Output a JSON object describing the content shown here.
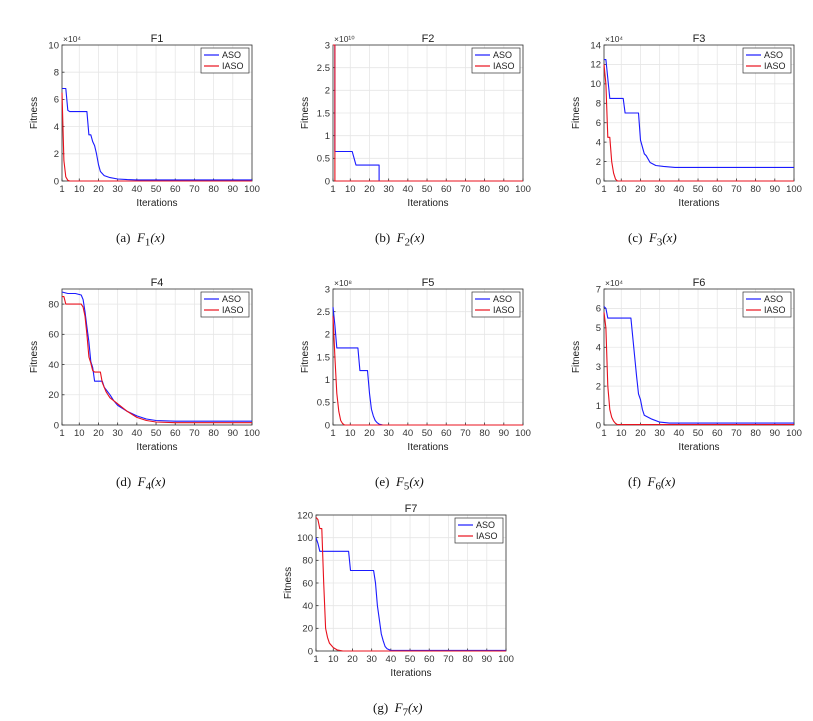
{
  "colors": {
    "aso": "#1a1aff",
    "iaso": "#e8101c",
    "grid": "#e6e6e6",
    "axis": "#333333"
  },
  "chart_data": [
    {
      "type": "line",
      "title": "F1",
      "xlabel": "Iterations",
      "ylabel": "Fitness",
      "xlim": [
        1,
        100
      ],
      "ylim": [
        0,
        10
      ],
      "y_exponent": "×10⁴",
      "xticks": [
        1,
        10,
        20,
        30,
        40,
        50,
        60,
        70,
        80,
        90,
        100
      ],
      "xtick_labels": [
        "1",
        "10",
        "20",
        "30",
        "40",
        "50",
        "60",
        "70",
        "80",
        "90",
        "100"
      ],
      "yticks": [
        0,
        2,
        4,
        6,
        8,
        10
      ],
      "ytick_labels": [
        "0",
        "2",
        "4",
        "6",
        "8",
        "10"
      ],
      "legend": [
        "ASO",
        "IASO"
      ],
      "caption_prefix": "(a)",
      "caption_func": "F",
      "caption_sub": "1",
      "caption_arg": "(x)",
      "series": [
        {
          "name": "ASO",
          "x": [
            1,
            3,
            4,
            5,
            14,
            15,
            16,
            17,
            18,
            19,
            20,
            21,
            23,
            26,
            30,
            35,
            40,
            100
          ],
          "values": [
            6.8,
            6.8,
            5.2,
            5.1,
            5.1,
            3.4,
            3.4,
            2.9,
            2.6,
            2.0,
            1.2,
            0.7,
            0.4,
            0.25,
            0.15,
            0.1,
            0.08,
            0.08
          ]
        },
        {
          "name": "IASO",
          "x": [
            1,
            2,
            3,
            4,
            5,
            100
          ],
          "values": [
            6.5,
            1.5,
            0.3,
            0.05,
            0,
            0
          ]
        }
      ]
    },
    {
      "type": "line",
      "title": "F2",
      "xlabel": "Iterations",
      "ylabel": "Fitness",
      "xlim": [
        1,
        100
      ],
      "ylim": [
        0,
        3
      ],
      "y_exponent": "×10¹⁰",
      "xticks": [
        1,
        10,
        20,
        30,
        40,
        50,
        60,
        70,
        80,
        90,
        100
      ],
      "xtick_labels": [
        "1",
        "10",
        "20",
        "30",
        "40",
        "50",
        "60",
        "70",
        "80",
        "90",
        "100"
      ],
      "yticks": [
        0,
        0.5,
        1,
        1.5,
        2,
        2.5,
        3
      ],
      "ytick_labels": [
        "0",
        "0.5",
        "1",
        "1.5",
        "2",
        "2.5",
        "3"
      ],
      "legend": [
        "ASO",
        "IASO"
      ],
      "caption_prefix": "(b)",
      "caption_func": "F",
      "caption_sub": "2",
      "caption_arg": "(x)",
      "series": [
        {
          "name": "ASO",
          "x": [
            1,
            2,
            2,
            11,
            12,
            13,
            25,
            25,
            100
          ],
          "values": [
            3,
            3,
            0.65,
            0.65,
            0.5,
            0.35,
            0.35,
            0,
            0
          ]
        },
        {
          "name": "IASO",
          "x": [
            1,
            2,
            2,
            100
          ],
          "values": [
            3,
            3,
            0,
            0
          ]
        }
      ]
    },
    {
      "type": "line",
      "title": "F3",
      "xlabel": "Iterations",
      "ylabel": "Fitness",
      "xlim": [
        1,
        100
      ],
      "ylim": [
        0,
        14
      ],
      "y_exponent": "×10⁴",
      "xticks": [
        1,
        10,
        20,
        30,
        40,
        50,
        60,
        70,
        80,
        90,
        100
      ],
      "xtick_labels": [
        "1",
        "10",
        "20",
        "30",
        "40",
        "50",
        "60",
        "70",
        "80",
        "90",
        "100"
      ],
      "yticks": [
        0,
        2,
        4,
        6,
        8,
        10,
        12,
        14
      ],
      "ytick_labels": [
        "0",
        "2",
        "4",
        "6",
        "8",
        "10",
        "12",
        "14"
      ],
      "legend": [
        "ASO",
        "IASO"
      ],
      "caption_prefix": "(c)",
      "caption_func": "F",
      "caption_sub": "3",
      "caption_arg": "(x)",
      "series": [
        {
          "name": "ASO",
          "x": [
            1,
            2,
            4,
            5,
            11,
            12,
            19,
            20,
            22,
            23,
            25,
            28,
            32,
            38,
            100
          ],
          "values": [
            12.5,
            12.5,
            8.5,
            8.5,
            8.5,
            7.0,
            7.0,
            4.2,
            2.8,
            2.6,
            1.9,
            1.6,
            1.5,
            1.4,
            1.4
          ]
        },
        {
          "name": "IASO",
          "x": [
            1,
            2,
            3,
            4,
            5,
            6,
            7,
            8,
            100
          ],
          "values": [
            12,
            10,
            4.5,
            4.5,
            2,
            0.8,
            0.2,
            0,
            0
          ]
        }
      ]
    },
    {
      "type": "line",
      "title": "F4",
      "xlabel": "Iterations",
      "ylabel": "Fitness",
      "xlim": [
        1,
        100
      ],
      "ylim": [
        0,
        90
      ],
      "y_exponent": "",
      "xticks": [
        1,
        10,
        20,
        30,
        40,
        50,
        60,
        70,
        80,
        90,
        100
      ],
      "xtick_labels": [
        "1",
        "10",
        "20",
        "30",
        "40",
        "50",
        "60",
        "70",
        "80",
        "90",
        "100"
      ],
      "yticks": [
        0,
        20,
        40,
        60,
        80
      ],
      "ytick_labels": [
        "0",
        "20",
        "40",
        "60",
        "80"
      ],
      "legend": [
        "ASO",
        "IASO"
      ],
      "caption_prefix": "(d)",
      "caption_func": "F",
      "caption_sub": "4",
      "caption_arg": "(x)",
      "series": [
        {
          "name": "ASO",
          "x": [
            1,
            4,
            8,
            11,
            12,
            13,
            14,
            15,
            16,
            17,
            18,
            22,
            23,
            26,
            28,
            30,
            35,
            40,
            45,
            50,
            60,
            100
          ],
          "values": [
            88,
            87,
            87,
            86,
            83,
            75,
            65,
            55,
            42,
            38,
            29,
            29,
            25,
            20,
            16,
            13,
            9,
            6,
            4,
            3,
            2.5,
            2.5
          ]
        },
        {
          "name": "IASO",
          "x": [
            1,
            2,
            3,
            11,
            12,
            13,
            14,
            15,
            16,
            17,
            18,
            21,
            22,
            24,
            26,
            30,
            35,
            40,
            45,
            50,
            60,
            100
          ],
          "values": [
            85,
            85,
            80,
            80,
            78,
            72,
            60,
            45,
            41,
            36,
            35,
            35,
            28,
            22,
            18,
            14,
            9,
            5,
            3,
            2,
            1.5,
            1.5
          ]
        }
      ]
    },
    {
      "type": "line",
      "title": "F5",
      "xlabel": "Iterations",
      "ylabel": "Fitness",
      "xlim": [
        1,
        100
      ],
      "ylim": [
        0,
        3
      ],
      "y_exponent": "×10⁸",
      "xticks": [
        1,
        10,
        20,
        30,
        40,
        50,
        60,
        70,
        80,
        90,
        100
      ],
      "xtick_labels": [
        "1",
        "10",
        "20",
        "30",
        "40",
        "50",
        "60",
        "70",
        "80",
        "90",
        "100"
      ],
      "yticks": [
        0,
        0.5,
        1,
        1.5,
        2,
        2.5,
        3
      ],
      "ytick_labels": [
        "0",
        "0.5",
        "1",
        "1.5",
        "2",
        "2.5",
        "3"
      ],
      "legend": [
        "ASO",
        "IASO"
      ],
      "caption_prefix": "(e)",
      "caption_func": "F",
      "caption_sub": "5",
      "caption_arg": "(x)",
      "series": [
        {
          "name": "ASO",
          "x": [
            1,
            2,
            3,
            14,
            15,
            19,
            20,
            21,
            22,
            23,
            24,
            25,
            27,
            100
          ],
          "values": [
            2.6,
            2.2,
            1.7,
            1.7,
            1.2,
            1.2,
            0.7,
            0.35,
            0.2,
            0.1,
            0.05,
            0.02,
            0,
            0
          ]
        },
        {
          "name": "IASO",
          "x": [
            1,
            2,
            3,
            4,
            5,
            6,
            7,
            100
          ],
          "values": [
            2.4,
            1.5,
            0.7,
            0.3,
            0.1,
            0.03,
            0,
            0
          ]
        }
      ]
    },
    {
      "type": "line",
      "title": "F6",
      "xlabel": "Iterations",
      "ylabel": "Fitness",
      "xlim": [
        1,
        100
      ],
      "ylim": [
        0,
        7
      ],
      "y_exponent": "×10⁴",
      "xticks": [
        1,
        10,
        20,
        30,
        40,
        50,
        60,
        70,
        80,
        90,
        100
      ],
      "xtick_labels": [
        "1",
        "10",
        "20",
        "30",
        "40",
        "50",
        "60",
        "70",
        "80",
        "90",
        "100"
      ],
      "yticks": [
        0,
        1,
        2,
        3,
        4,
        5,
        6,
        7
      ],
      "ytick_labels": [
        "0",
        "1",
        "2",
        "3",
        "4",
        "5",
        "6",
        "7"
      ],
      "legend": [
        "ASO",
        "IASO"
      ],
      "caption_prefix": "(f)",
      "caption_func": "F",
      "caption_sub": "6",
      "caption_arg": "(x)",
      "series": [
        {
          "name": "ASO",
          "x": [
            1,
            2,
            3,
            15,
            16,
            17,
            18,
            19,
            20,
            21,
            22,
            24,
            26,
            30,
            35,
            40,
            100
          ],
          "values": [
            6.1,
            6.0,
            5.5,
            5.5,
            4.5,
            3.5,
            2.5,
            1.6,
            1.3,
            0.8,
            0.5,
            0.4,
            0.3,
            0.15,
            0.1,
            0.1,
            0.1
          ]
        },
        {
          "name": "IASO",
          "x": [
            1,
            2,
            3,
            4,
            5,
            6,
            7,
            8,
            100
          ],
          "values": [
            5.8,
            5.0,
            2.0,
            0.8,
            0.4,
            0.2,
            0.08,
            0.02,
            0.02
          ]
        }
      ]
    },
    {
      "type": "line",
      "title": "F7",
      "xlabel": "Iterations",
      "ylabel": "Fitness",
      "xlim": [
        1,
        100
      ],
      "ylim": [
        0,
        120
      ],
      "y_exponent": "",
      "xticks": [
        1,
        10,
        20,
        30,
        40,
        50,
        60,
        70,
        80,
        90,
        100
      ],
      "xtick_labels": [
        "1",
        "10",
        "20",
        "30",
        "40",
        "50",
        "60",
        "70",
        "80",
        "90",
        "100"
      ],
      "yticks": [
        0,
        20,
        40,
        60,
        80,
        100,
        120
      ],
      "ytick_labels": [
        "0",
        "20",
        "40",
        "60",
        "80",
        "100",
        "120"
      ],
      "legend": [
        "ASO",
        "IASO"
      ],
      "caption_prefix": "(g)",
      "caption_func": "F",
      "caption_sub": "7",
      "caption_arg": "(x)",
      "series": [
        {
          "name": "ASO",
          "x": [
            1,
            2,
            3,
            4,
            18,
            19,
            31,
            32,
            33,
            34,
            35,
            36,
            37,
            38,
            40,
            100
          ],
          "values": [
            100,
            95,
            88,
            88,
            88,
            71,
            71,
            60,
            40,
            28,
            15,
            9,
            4,
            2,
            0.5,
            0.5
          ]
        },
        {
          "name": "IASO",
          "x": [
            1,
            2,
            3,
            4,
            5,
            6,
            7,
            8,
            10,
            12,
            15,
            100
          ],
          "values": [
            118,
            116,
            108,
            108,
            60,
            20,
            12,
            7,
            3,
            1,
            0,
            0
          ]
        }
      ]
    }
  ]
}
